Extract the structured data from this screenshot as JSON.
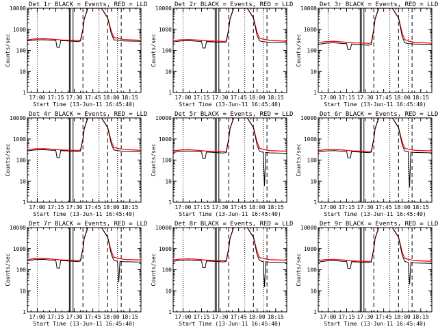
{
  "chart_data": {
    "type": "line",
    "y_scale": "log",
    "ylim": [
      1,
      10000
    ],
    "xlim": [
      "16:52",
      "18:24"
    ],
    "x_tick_labels": [
      "17:00",
      "17:15",
      "17:30",
      "17:45",
      "18:00",
      "18:15"
    ],
    "y_tick_labels": [
      "1",
      "10",
      "100",
      "1000",
      "10000"
    ],
    "ylabel": "Counts/sec",
    "xlabel": "Start Time (13-Jun-11 16:45:40)",
    "dotted_markers": [
      "17:00",
      "17:50",
      "18:05"
    ],
    "solid_markers": [
      "17:26",
      "17:27",
      "17:29"
    ],
    "dashed_markers": [
      "17:37",
      "17:57",
      "18:08"
    ],
    "colors": {
      "events": "#000000",
      "lld": "#ff0000"
    },
    "panels": [
      {
        "title": "Det 1r BLACK = Events, RED = LLD",
        "series": [
          {
            "name": "Events",
            "x": [
              "16:52",
              "16:58",
              "17:05",
              "17:12",
              "17:15",
              "17:16",
              "17:18",
              "17:19",
              "17:25",
              "17:30",
              "17:33",
              "17:35",
              "17:37",
              "17:38",
              "17:41",
              "17:52",
              "17:57",
              "18:00",
              "18:02",
              "18:05",
              "18:10",
              "18:24"
            ],
            "y": [
              280,
              310,
              320,
              300,
              300,
              140,
              140,
              290,
              280,
              270,
              260,
              280,
              1000,
              3000,
              10000,
              10000,
              3500,
              600,
              320,
              300,
              280,
              270
            ]
          },
          {
            "name": "LLD",
            "x": [
              "16:52",
              "16:58",
              "17:05",
              "17:12",
              "17:20",
              "17:30",
              "17:33",
              "17:35",
              "17:37",
              "17:38",
              "17:41",
              "17:52",
              "17:57",
              "18:00",
              "18:02",
              "18:05",
              "18:10",
              "18:24"
            ],
            "y": [
              320,
              350,
              360,
              340,
              310,
              300,
              295,
              310,
              1000,
              3000,
              10000,
              10000,
              3500,
              800,
              420,
              380,
              330,
              300
            ]
          }
        ]
      },
      {
        "title": "Det 2r BLACK = Events, RED = LLD",
        "series": [
          {
            "name": "Events",
            "x": [
              "16:52",
              "16:58",
              "17:05",
              "17:12",
              "17:15",
              "17:16",
              "17:18",
              "17:19",
              "17:25",
              "17:30",
              "17:33",
              "17:35",
              "17:37",
              "17:38",
              "17:41",
              "17:52",
              "17:57",
              "18:00",
              "18:02",
              "18:05",
              "18:10",
              "18:24"
            ],
            "y": [
              250,
              280,
              290,
              270,
              270,
              130,
              130,
              260,
              250,
              240,
              235,
              250,
              1000,
              3000,
              10000,
              10000,
              3500,
              500,
              280,
              260,
              240,
              230
            ]
          },
          {
            "name": "LLD",
            "x": [
              "16:52",
              "16:58",
              "17:05",
              "17:12",
              "17:20",
              "17:30",
              "17:33",
              "17:35",
              "17:37",
              "17:38",
              "17:41",
              "17:52",
              "17:57",
              "18:00",
              "18:02",
              "18:05",
              "18:10",
              "18:24"
            ],
            "y": [
              290,
              320,
              330,
              310,
              280,
              270,
              265,
              280,
              1000,
              3000,
              10000,
              10000,
              3500,
              700,
              380,
              340,
              300,
              270
            ]
          }
        ]
      },
      {
        "title": "Det 3r BLACK = Events, RED = LLD",
        "series": [
          {
            "name": "Events",
            "x": [
              "16:52",
              "16:58",
              "17:05",
              "17:12",
              "17:15",
              "17:16",
              "17:18",
              "17:19",
              "17:25",
              "17:30",
              "17:33",
              "17:35",
              "17:37",
              "17:38",
              "17:41",
              "17:52",
              "17:57",
              "18:00",
              "18:02",
              "18:05",
              "18:10",
              "18:24"
            ],
            "y": [
              190,
              220,
              230,
              210,
              210,
              110,
              110,
              200,
              190,
              180,
              175,
              190,
              1000,
              3000,
              10000,
              10000,
              3500,
              450,
              230,
              210,
              200,
              190
            ]
          },
          {
            "name": "LLD",
            "x": [
              "16:52",
              "16:58",
              "17:05",
              "17:12",
              "17:20",
              "17:30",
              "17:33",
              "17:35",
              "17:37",
              "17:38",
              "17:41",
              "17:52",
              "17:57",
              "18:00",
              "18:02",
              "18:05",
              "18:10",
              "18:24"
            ],
            "y": [
              230,
              260,
              270,
              250,
              230,
              220,
              215,
              230,
              1000,
              3000,
              10000,
              10000,
              3500,
              650,
              330,
              280,
              240,
              220
            ]
          }
        ]
      },
      {
        "title": "Det 4r BLACK = Events, RED = LLD",
        "series": [
          {
            "name": "Events",
            "x": [
              "16:52",
              "16:58",
              "17:05",
              "17:12",
              "17:15",
              "17:16",
              "17:18",
              "17:19",
              "17:25",
              "17:30",
              "17:33",
              "17:35",
              "17:37",
              "17:38",
              "17:41",
              "17:52",
              "17:57",
              "18:00",
              "18:02",
              "18:05",
              "18:10",
              "18:24"
            ],
            "y": [
              270,
              300,
              310,
              290,
              290,
              130,
              130,
              280,
              270,
              260,
              250,
              270,
              1000,
              3000,
              10000,
              10000,
              3500,
              550,
              300,
              280,
              260,
              250
            ]
          },
          {
            "name": "LLD",
            "x": [
              "16:52",
              "16:58",
              "17:05",
              "17:12",
              "17:20",
              "17:30",
              "17:33",
              "17:35",
              "17:37",
              "17:38",
              "17:41",
              "17:52",
              "17:57",
              "18:00",
              "18:02",
              "18:05",
              "18:10",
              "18:24"
            ],
            "y": [
              310,
              340,
              350,
              330,
              300,
              290,
              285,
              300,
              1000,
              3000,
              10000,
              10000,
              3500,
              750,
              400,
              360,
              320,
              290
            ]
          }
        ]
      },
      {
        "title": "Det 5r BLACK = Events, RED = LLD",
        "series": [
          {
            "name": "Events",
            "x": [
              "16:52",
              "16:58",
              "17:05",
              "17:12",
              "17:15",
              "17:16",
              "17:18",
              "17:19",
              "17:25",
              "17:30",
              "17:33",
              "17:35",
              "17:37",
              "17:38",
              "17:41",
              "17:52",
              "17:57",
              "18:00",
              "18:02",
              "18:05",
              "18:06",
              "18:07",
              "18:10",
              "18:24"
            ],
            "y": [
              230,
              260,
              270,
              250,
              250,
              120,
              120,
              240,
              230,
              220,
              215,
              230,
              1000,
              3000,
              10000,
              10000,
              3500,
              500,
              260,
              230,
              6,
              230,
              220,
              210
            ]
          },
          {
            "name": "LLD",
            "x": [
              "16:52",
              "16:58",
              "17:05",
              "17:12",
              "17:20",
              "17:30",
              "17:33",
              "17:35",
              "17:37",
              "17:38",
              "17:41",
              "17:52",
              "17:57",
              "18:00",
              "18:02",
              "18:05",
              "18:10",
              "18:24"
            ],
            "y": [
              270,
              300,
              310,
              290,
              260,
              250,
              245,
              260,
              1000,
              3000,
              10000,
              10000,
              3500,
              700,
              360,
              320,
              280,
              260
            ]
          }
        ]
      },
      {
        "title": "Det 6r BLACK = Events, RED = LLD",
        "series": [
          {
            "name": "Events",
            "x": [
              "16:52",
              "16:58",
              "17:05",
              "17:12",
              "17:15",
              "17:16",
              "17:18",
              "17:19",
              "17:25",
              "17:30",
              "17:33",
              "17:35",
              "17:37",
              "17:38",
              "17:41",
              "17:52",
              "17:57",
              "18:00",
              "18:02",
              "18:05",
              "18:06",
              "18:07",
              "18:10",
              "18:24"
            ],
            "y": [
              240,
              270,
              280,
              260,
              260,
              125,
              125,
              250,
              240,
              230,
              225,
              240,
              1000,
              3000,
              10000,
              10000,
              3500,
              520,
              270,
              240,
              5,
              240,
              230,
              220
            ]
          },
          {
            "name": "LLD",
            "x": [
              "16:52",
              "16:58",
              "17:05",
              "17:12",
              "17:20",
              "17:30",
              "17:33",
              "17:35",
              "17:37",
              "17:38",
              "17:41",
              "17:52",
              "17:57",
              "18:00",
              "18:02",
              "18:05",
              "18:10",
              "18:24"
            ],
            "y": [
              280,
              310,
              320,
              300,
              270,
              260,
              255,
              270,
              1000,
              3000,
              10000,
              10000,
              3500,
              720,
              370,
              330,
              290,
              270
            ]
          }
        ]
      },
      {
        "title": "Det 7r BLACK = Events, RED = LLD",
        "series": [
          {
            "name": "Events",
            "x": [
              "16:52",
              "16:58",
              "17:05",
              "17:12",
              "17:15",
              "17:16",
              "17:18",
              "17:19",
              "17:25",
              "17:30",
              "17:33",
              "17:35",
              "17:37",
              "17:38",
              "17:41",
              "17:52",
              "17:57",
              "18:00",
              "18:02",
              "18:05",
              "18:06",
              "18:07",
              "18:10",
              "18:24"
            ],
            "y": [
              260,
              300,
              310,
              280,
              280,
              120,
              120,
              270,
              260,
              250,
              240,
              260,
              1000,
              3000,
              10000,
              10000,
              3500,
              520,
              280,
              250,
              25,
              250,
              240,
              230
            ]
          },
          {
            "name": "LLD",
            "x": [
              "16:52",
              "16:58",
              "17:05",
              "17:12",
              "17:20",
              "17:30",
              "17:33",
              "17:35",
              "17:37",
              "17:38",
              "17:41",
              "17:52",
              "17:57",
              "18:00",
              "18:02",
              "18:05",
              "18:10",
              "18:24"
            ],
            "y": [
              300,
              340,
              350,
              320,
              290,
              280,
              275,
              290,
              1000,
              3000,
              10000,
              10000,
              3500,
              740,
              390,
              350,
              310,
              290
            ]
          }
        ]
      },
      {
        "title": "Det 8r BLACK = Events, RED = LLD",
        "series": [
          {
            "name": "Events",
            "x": [
              "16:52",
              "16:58",
              "17:05",
              "17:12",
              "17:15",
              "17:16",
              "17:18",
              "17:19",
              "17:25",
              "17:30",
              "17:33",
              "17:35",
              "17:37",
              "17:38",
              "17:41",
              "17:52",
              "17:57",
              "18:00",
              "18:02",
              "18:05",
              "18:06",
              "18:07",
              "18:10",
              "18:24"
            ],
            "y": [
              250,
              280,
              290,
              270,
              270,
              125,
              125,
              260,
              250,
              240,
              235,
              250,
              1000,
              3000,
              10000,
              10000,
              3500,
              510,
              270,
              240,
              15,
              240,
              230,
              220
            ]
          },
          {
            "name": "LLD",
            "x": [
              "16:52",
              "16:58",
              "17:05",
              "17:12",
              "17:20",
              "17:30",
              "17:33",
              "17:35",
              "17:37",
              "17:38",
              "17:41",
              "17:52",
              "17:57",
              "18:00",
              "18:02",
              "18:05",
              "18:10",
              "18:24"
            ],
            "y": [
              290,
              320,
              330,
              310,
              280,
              270,
              265,
              280,
              1000,
              3000,
              10000,
              10000,
              3500,
              720,
              380,
              340,
              300,
              280
            ]
          }
        ]
      },
      {
        "title": "Det 9r BLACK = Events, RED = LLD",
        "series": [
          {
            "name": "Events",
            "x": [
              "16:52",
              "16:58",
              "17:05",
              "17:12",
              "17:15",
              "17:16",
              "17:18",
              "17:19",
              "17:25",
              "17:30",
              "17:33",
              "17:35",
              "17:37",
              "17:38",
              "17:41",
              "17:52",
              "17:57",
              "18:00",
              "18:02",
              "18:05",
              "18:06",
              "18:07",
              "18:10",
              "18:24"
            ],
            "y": [
              230,
              260,
              270,
              250,
              250,
              115,
              115,
              240,
              230,
              220,
              215,
              230,
              1000,
              3000,
              10000,
              10000,
              3500,
              480,
              250,
              220,
              20,
              220,
              210,
              200
            ]
          },
          {
            "name": "LLD",
            "x": [
              "16:52",
              "16:58",
              "17:05",
              "17:12",
              "17:20",
              "17:30",
              "17:33",
              "17:35",
              "17:37",
              "17:38",
              "17:41",
              "17:52",
              "17:57",
              "18:00",
              "18:02",
              "18:05",
              "18:10",
              "18:24"
            ],
            "y": [
              270,
              300,
              310,
              290,
              260,
              250,
              245,
              260,
              1000,
              3000,
              10000,
              10000,
              3500,
              690,
              350,
              310,
              270,
              250
            ]
          }
        ]
      }
    ]
  }
}
